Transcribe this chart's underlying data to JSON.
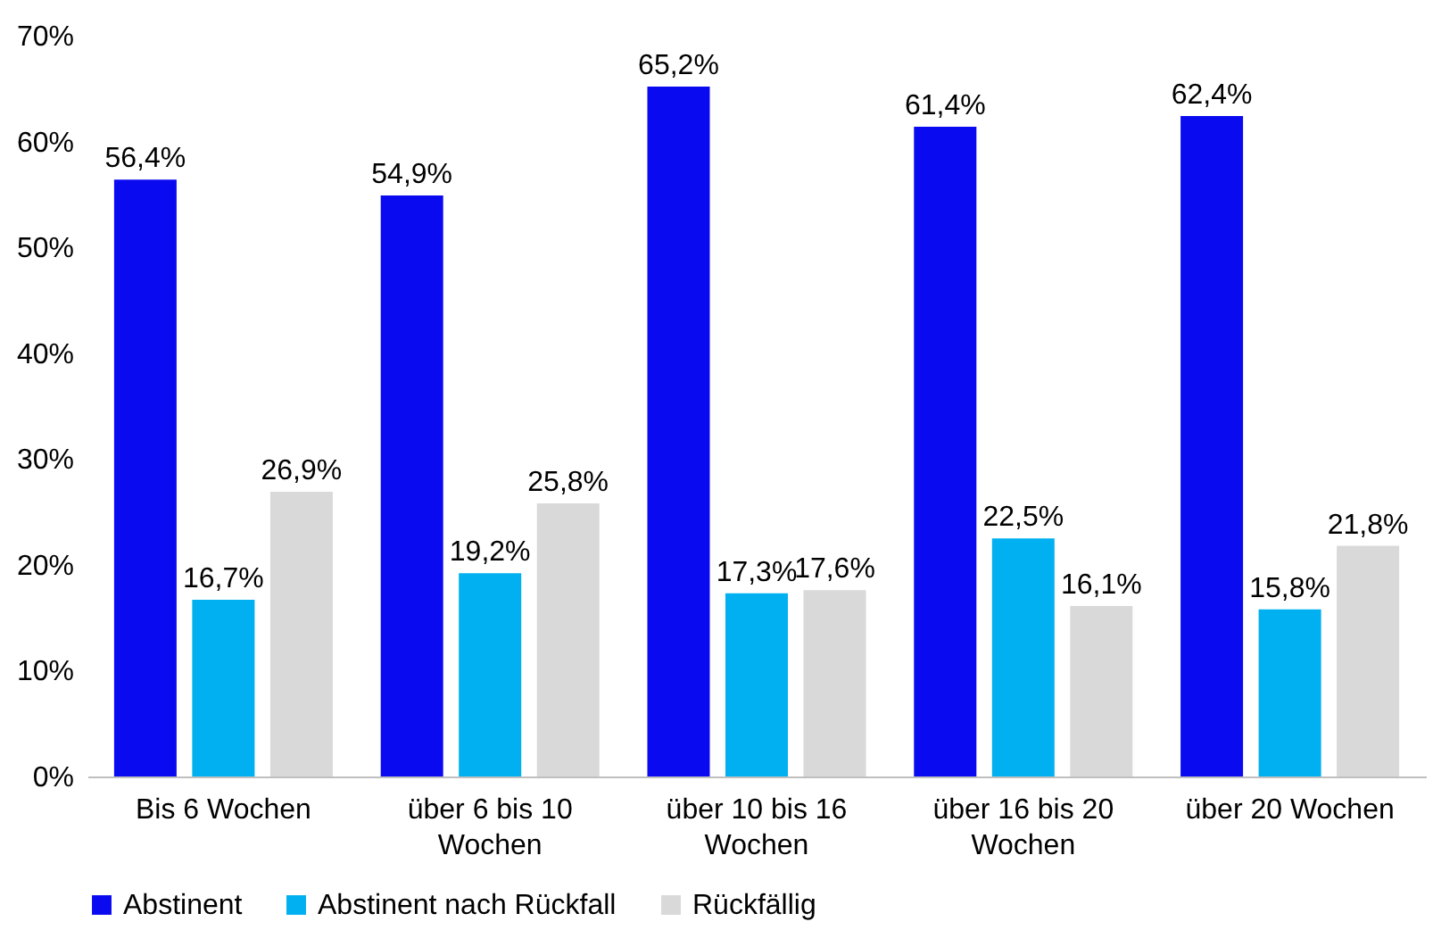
{
  "chart_data": {
    "type": "bar",
    "categories": [
      "Bis 6 Wochen",
      "über 6 bis 10 Wochen",
      "über 10 bis 16 Wochen",
      "über 16 bis 20 Wochen",
      "über 20 Wochen"
    ],
    "series": [
      {
        "name": "Abstinent",
        "color": "#0a0af0",
        "values": [
          56.4,
          54.9,
          65.2,
          61.4,
          62.4
        ],
        "value_labels": [
          "56,4%",
          "54,9%",
          "65,2%",
          "61,4%",
          "62,4%"
        ]
      },
      {
        "name": "Abstinent nach Rückfall",
        "color": "#00b0f0",
        "values": [
          16.7,
          19.2,
          17.3,
          22.5,
          15.8
        ],
        "value_labels": [
          "16,7%",
          "19,2%",
          "17,3%",
          "22,5%",
          "15,8%"
        ]
      },
      {
        "name": "Rückfällig",
        "color": "#d9d9d9",
        "values": [
          26.9,
          25.8,
          17.6,
          16.1,
          21.8
        ],
        "value_labels": [
          "26,9%",
          "25,8%",
          "17,6%",
          "16,1%",
          "21,8%"
        ]
      }
    ],
    "ylim": [
      0,
      70
    ],
    "yticks": [
      {
        "value": 0,
        "label": "0%"
      },
      {
        "value": 10,
        "label": "10%"
      },
      {
        "value": 20,
        "label": "20%"
      },
      {
        "value": 30,
        "label": "30%"
      },
      {
        "value": 40,
        "label": "40%"
      },
      {
        "value": 50,
        "label": "50%"
      },
      {
        "value": 60,
        "label": "60%"
      },
      {
        "value": 70,
        "label": "70%"
      }
    ],
    "grid": false,
    "legend": "bottom"
  }
}
